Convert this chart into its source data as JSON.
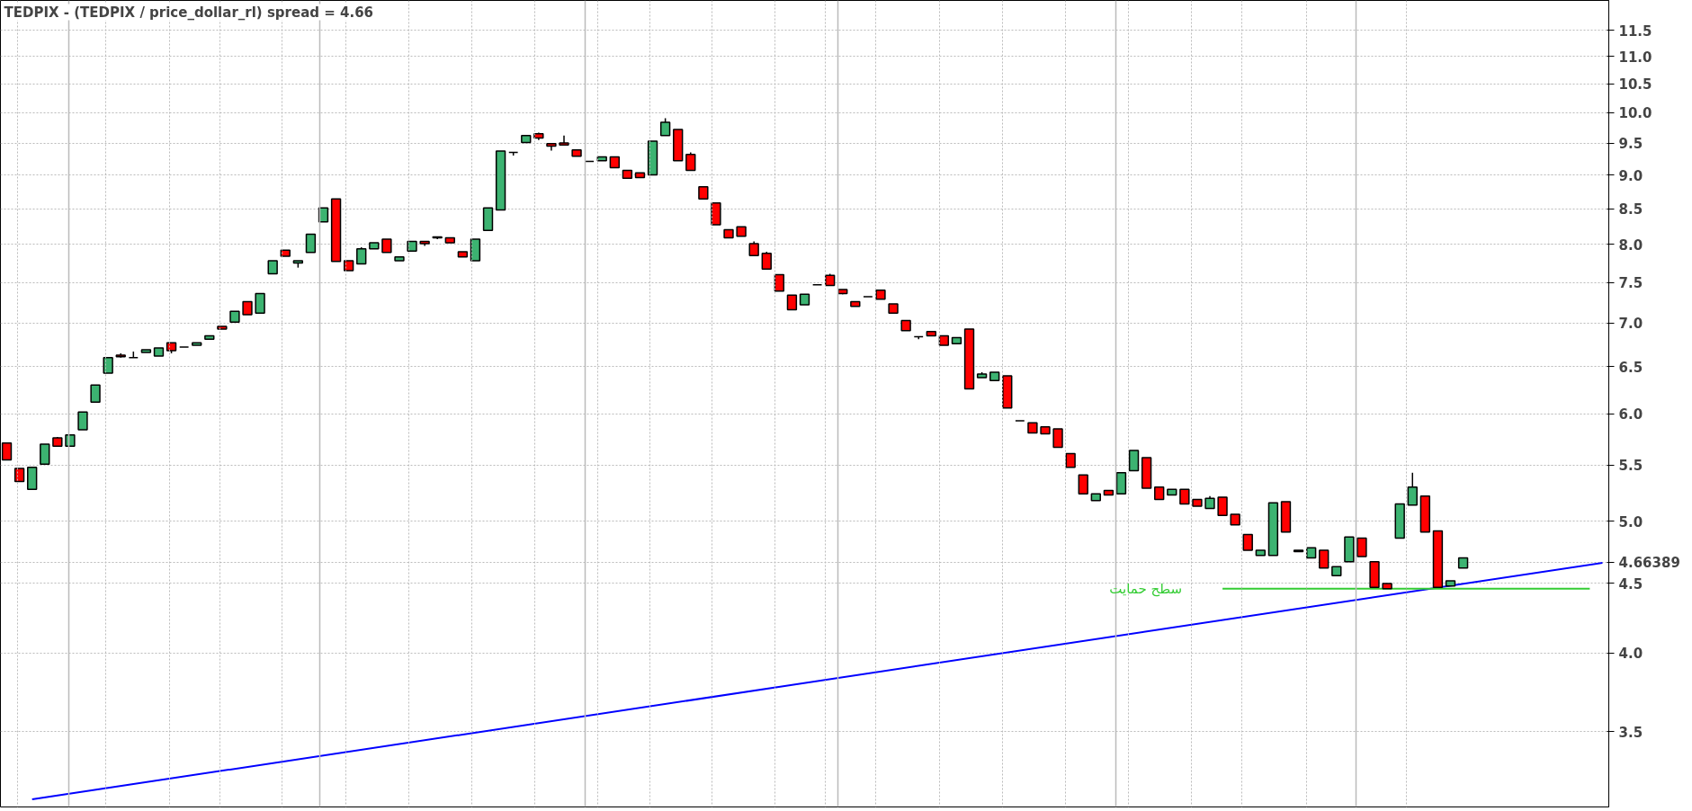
{
  "chart_data": {
    "type": "candlestick",
    "title": "TEDPIX - (TEDPIX / price_dollar_rl) spread = 4.66",
    "categories": [
      null,
      null,
      null,
      null,
      null,
      null,
      null,
      null,
      null,
      null,
      null,
      null,
      null,
      null,
      null,
      null,
      null,
      null,
      null,
      null,
      null,
      null,
      null,
      null,
      null,
      null,
      null,
      null,
      null,
      null,
      null,
      null,
      null,
      null,
      null,
      null,
      null,
      null,
      null,
      null,
      null,
      null,
      null,
      null,
      null,
      null,
      null,
      null,
      null,
      null,
      null,
      null,
      null,
      null,
      null,
      null,
      null,
      null,
      null,
      null,
      null,
      null,
      null,
      null,
      null,
      null,
      null,
      null,
      null,
      null,
      null,
      null,
      null,
      null,
      null,
      null,
      null,
      null,
      null,
      null,
      null,
      null,
      null,
      null,
      null,
      null,
      null,
      null,
      null,
      null,
      null,
      null,
      null,
      null,
      null,
      null,
      null,
      null,
      null,
      null,
      null,
      null,
      null,
      null,
      null,
      null,
      null,
      null,
      null,
      null,
      null,
      null,
      null,
      null,
      null,
      null,
      null,
      null,
      null,
      null,
      null,
      null,
      null,
      null,
      null,
      null,
      null
    ],
    "ohlc": [
      [
        5.71,
        5.71,
        5.55,
        5.55
      ],
      [
        5.47,
        5.47,
        5.35,
        5.35
      ],
      [
        5.28,
        5.48,
        5.28,
        5.48
      ],
      [
        5.51,
        5.7,
        5.51,
        5.7
      ],
      [
        5.76,
        5.77,
        5.68,
        5.68
      ],
      [
        5.68,
        5.79,
        5.68,
        5.79
      ],
      [
        5.84,
        6.02,
        5.84,
        6.02
      ],
      [
        6.12,
        6.3,
        6.12,
        6.3
      ],
      [
        6.43,
        6.6,
        6.43,
        6.6
      ],
      [
        6.63,
        6.65,
        6.6,
        6.61
      ],
      [
        6.6,
        6.67,
        6.6,
        6.6
      ],
      [
        6.66,
        6.69,
        6.66,
        6.69
      ],
      [
        6.62,
        6.71,
        6.62,
        6.71
      ],
      [
        6.77,
        6.77,
        6.65,
        6.68
      ],
      [
        6.72,
        6.72,
        6.72,
        6.72
      ],
      [
        6.74,
        6.77,
        6.74,
        6.77
      ],
      [
        6.81,
        6.85,
        6.81,
        6.85
      ],
      [
        6.96,
        6.96,
        6.93,
        6.93
      ],
      [
        7.01,
        7.14,
        7.01,
        7.14
      ],
      [
        7.26,
        7.26,
        7.1,
        7.1
      ],
      [
        7.12,
        7.36,
        7.12,
        7.36
      ],
      [
        7.61,
        7.78,
        7.61,
        7.78
      ],
      [
        7.92,
        7.92,
        7.84,
        7.84
      ],
      [
        7.75,
        7.78,
        7.69,
        7.78
      ],
      [
        7.89,
        8.14,
        7.89,
        8.14
      ],
      [
        8.31,
        8.51,
        8.31,
        8.51
      ],
      [
        8.64,
        8.64,
        7.77,
        7.77
      ],
      [
        7.78,
        7.78,
        7.65,
        7.65
      ],
      [
        7.74,
        7.96,
        7.74,
        7.94
      ],
      [
        7.94,
        8.02,
        7.94,
        8.02
      ],
      [
        8.07,
        8.07,
        7.89,
        7.89
      ],
      [
        7.78,
        7.83,
        7.78,
        7.83
      ],
      [
        7.91,
        8.04,
        7.91,
        8.04
      ],
      [
        8.04,
        8.04,
        7.98,
        8.01
      ],
      [
        8.1,
        8.1,
        8.07,
        8.09
      ],
      [
        8.09,
        8.09,
        8.02,
        8.02
      ],
      [
        7.9,
        7.9,
        7.83,
        7.83
      ],
      [
        7.78,
        8.07,
        7.78,
        8.07
      ],
      [
        8.19,
        8.51,
        8.19,
        8.51
      ],
      [
        8.48,
        9.37,
        8.48,
        9.37
      ],
      [
        9.35,
        9.35,
        9.3,
        9.35
      ],
      [
        9.51,
        9.62,
        9.51,
        9.62
      ],
      [
        9.65,
        9.67,
        9.55,
        9.58
      ],
      [
        9.49,
        9.49,
        9.38,
        9.45
      ],
      [
        9.5,
        9.62,
        9.47,
        9.47
      ],
      [
        9.39,
        9.39,
        9.29,
        9.29
      ],
      [
        9.21,
        9.21,
        9.21,
        9.21
      ],
      [
        9.22,
        9.28,
        9.22,
        9.28
      ],
      [
        9.28,
        9.28,
        9.11,
        9.11
      ],
      [
        9.07,
        9.07,
        8.95,
        8.95
      ],
      [
        9.03,
        9.03,
        8.96,
        8.96
      ],
      [
        9.0,
        9.53,
        9.0,
        9.53
      ],
      [
        9.62,
        9.91,
        9.62,
        9.84
      ],
      [
        9.72,
        9.72,
        9.22,
        9.22
      ],
      [
        9.32,
        9.35,
        9.07,
        9.07
      ],
      [
        8.82,
        8.82,
        8.64,
        8.64
      ],
      [
        8.58,
        8.58,
        8.27,
        8.27
      ],
      [
        8.2,
        8.2,
        8.09,
        8.09
      ],
      [
        8.24,
        8.24,
        8.11,
        8.11
      ],
      [
        8.01,
        8.04,
        7.85,
        7.85
      ],
      [
        7.88,
        7.9,
        7.67,
        7.67
      ],
      [
        7.6,
        7.6,
        7.39,
        7.39
      ],
      [
        7.34,
        7.34,
        7.16,
        7.16
      ],
      [
        7.22,
        7.35,
        7.22,
        7.35
      ],
      [
        7.47,
        7.47,
        7.47,
        7.47
      ],
      [
        7.59,
        7.61,
        7.46,
        7.46
      ],
      [
        7.41,
        7.41,
        7.35,
        7.36
      ],
      [
        7.26,
        7.26,
        7.2,
        7.2
      ],
      [
        7.32,
        7.32,
        7.32,
        7.32
      ],
      [
        7.4,
        7.4,
        7.29,
        7.29
      ],
      [
        7.23,
        7.23,
        7.12,
        7.12
      ],
      [
        7.03,
        7.03,
        6.91,
        6.91
      ],
      [
        6.84,
        6.84,
        6.81,
        6.84
      ],
      [
        6.9,
        6.9,
        6.85,
        6.85
      ],
      [
        6.85,
        6.85,
        6.74,
        6.74
      ],
      [
        6.76,
        6.83,
        6.76,
        6.83
      ],
      [
        6.93,
        6.93,
        6.26,
        6.26
      ],
      [
        6.38,
        6.44,
        6.38,
        6.42
      ],
      [
        6.35,
        6.44,
        6.35,
        6.44
      ],
      [
        6.4,
        6.4,
        6.06,
        6.06
      ],
      [
        5.93,
        5.93,
        5.93,
        5.93
      ],
      [
        5.91,
        5.91,
        5.81,
        5.81
      ],
      [
        5.87,
        5.87,
        5.8,
        5.8
      ],
      [
        5.85,
        5.85,
        5.67,
        5.67
      ],
      [
        5.61,
        5.61,
        5.48,
        5.48
      ],
      [
        5.41,
        5.41,
        5.24,
        5.24
      ],
      [
        5.18,
        5.24,
        5.18,
        5.24
      ],
      [
        5.27,
        5.27,
        5.23,
        5.23
      ],
      [
        5.24,
        5.43,
        5.24,
        5.43
      ],
      [
        5.45,
        5.64,
        5.45,
        5.64
      ],
      [
        5.57,
        5.57,
        5.29,
        5.29
      ],
      [
        5.3,
        5.3,
        5.19,
        5.19
      ],
      [
        5.23,
        5.28,
        5.23,
        5.28
      ],
      [
        5.28,
        5.28,
        5.15,
        5.15
      ],
      [
        5.19,
        5.19,
        5.13,
        5.13
      ],
      [
        5.11,
        5.22,
        5.11,
        5.2
      ],
      [
        5.21,
        5.21,
        5.05,
        5.05
      ],
      [
        5.06,
        5.06,
        4.97,
        4.97
      ],
      [
        4.89,
        4.89,
        4.76,
        4.76
      ],
      [
        4.72,
        4.76,
        4.72,
        4.76
      ],
      [
        4.72,
        5.16,
        4.72,
        5.16
      ],
      [
        5.17,
        5.17,
        4.91,
        4.91
      ],
      [
        4.76,
        4.76,
        4.75,
        4.75
      ],
      [
        4.7,
        4.78,
        4.7,
        4.78
      ],
      [
        4.76,
        4.76,
        4.62,
        4.62
      ],
      [
        4.56,
        4.63,
        4.56,
        4.63
      ],
      [
        4.67,
        4.87,
        4.67,
        4.87
      ],
      [
        4.86,
        4.86,
        4.71,
        4.71
      ],
      [
        4.67,
        4.67,
        4.47,
        4.47
      ],
      [
        4.5,
        4.5,
        4.46,
        4.46
      ],
      [
        4.86,
        5.15,
        4.86,
        5.15
      ],
      [
        5.14,
        5.43,
        5.14,
        5.3
      ],
      [
        5.22,
        5.22,
        4.91,
        4.91
      ],
      [
        4.92,
        4.92,
        4.47,
        4.47
      ],
      [
        4.48,
        4.52,
        4.48,
        4.52
      ],
      [
        4.62,
        4.7,
        4.62,
        4.7
      ],
      null,
      null,
      null,
      null,
      null,
      null,
      null,
      null,
      null,
      null,
      null
    ],
    "series": [
      {
        "type": "line",
        "color": "#0000ff",
        "values": [
          null,
          null,
          3.12,
          null,
          null,
          null,
          null,
          null,
          null,
          null,
          null,
          null,
          null,
          null,
          null,
          null,
          null,
          null,
          null,
          null,
          null,
          null,
          null,
          null,
          null,
          null,
          null,
          null,
          null,
          null,
          null,
          null,
          null,
          null,
          null,
          null,
          null,
          null,
          null,
          null,
          null,
          null,
          null,
          null,
          null,
          null,
          null,
          null,
          null,
          null,
          null,
          null,
          null,
          null,
          null,
          null,
          null,
          null,
          null,
          null,
          null,
          null,
          null,
          null,
          null,
          null,
          null,
          null,
          null,
          null,
          null,
          null,
          null,
          null,
          null,
          null,
          null,
          null,
          null,
          null,
          null,
          null,
          null,
          null,
          null,
          null,
          null,
          null,
          null,
          null,
          null,
          null,
          null,
          null,
          null,
          null,
          null,
          null,
          null,
          null,
          null,
          null,
          null,
          null,
          null,
          null,
          null,
          null,
          null,
          null,
          null,
          null,
          null,
          null,
          null,
          null,
          null,
          null,
          null,
          null,
          null,
          null,
          null,
          null,
          null,
          null,
          4.66
        ]
      },
      {
        "type": "line",
        "name": "سطح حمایت",
        "color": "#33cc33",
        "values": [
          null,
          null,
          null,
          null,
          null,
          null,
          null,
          null,
          null,
          null,
          null,
          null,
          null,
          null,
          null,
          null,
          null,
          null,
          null,
          null,
          null,
          null,
          null,
          null,
          null,
          null,
          null,
          null,
          null,
          null,
          null,
          null,
          null,
          null,
          null,
          null,
          null,
          null,
          null,
          null,
          null,
          null,
          null,
          null,
          null,
          null,
          null,
          null,
          null,
          null,
          null,
          null,
          null,
          null,
          null,
          null,
          null,
          null,
          null,
          null,
          null,
          null,
          null,
          null,
          null,
          null,
          null,
          null,
          null,
          null,
          null,
          null,
          null,
          null,
          null,
          null,
          null,
          null,
          null,
          null,
          null,
          null,
          null,
          null,
          null,
          null,
          null,
          null,
          null,
          null,
          null,
          null,
          null,
          null,
          null,
          null,
          4.46,
          4.46,
          4.46,
          4.46,
          4.46,
          4.46,
          4.46,
          4.46,
          4.46,
          4.46,
          4.46,
          4.46,
          4.46,
          4.46,
          4.46,
          4.46,
          4.46,
          4.46,
          4.46,
          4.46,
          4.46,
          4.46,
          4.46,
          4.46,
          4.46,
          4.46,
          4.46,
          4.46,
          4.46,
          4.46,
          null
        ]
      }
    ],
    "log": "y",
    "ylim": [
      3.08,
      12.1
    ],
    "yticks": [
      3.5,
      {
        "value": 4,
        "label": "4.0"
      },
      4.5,
      {
        "value": 4.66389,
        "label": "4.66389"
      },
      {
        "value": 5,
        "label": "5.0"
      },
      5.5,
      {
        "value": 6,
        "label": "6.0"
      },
      6.5,
      {
        "value": 7,
        "label": "7.0"
      },
      7.5,
      {
        "value": 8,
        "label": "8.0"
      },
      8.5,
      {
        "value": 9,
        "label": "9.0"
      },
      9.5,
      {
        "value": 10,
        "label": "10.0"
      },
      10.5,
      {
        "value": 11,
        "label": "11.0"
      },
      11.5
    ],
    "grid": true,
    "tick_labels": "y",
    "line_style": "solid"
  }
}
